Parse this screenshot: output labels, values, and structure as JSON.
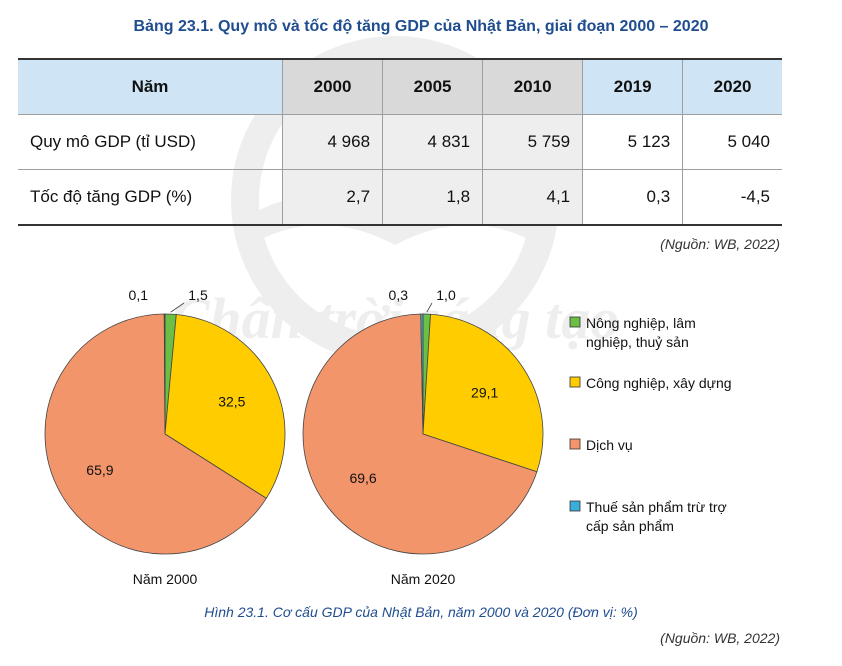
{
  "table": {
    "title": "Bảng 23.1. Quy mô và tốc độ tăng GDP của Nhật Bản, giai đoạn 2000 – 2020",
    "header_label": "Năm",
    "years": [
      "2000",
      "2005",
      "2010",
      "2019",
      "2020"
    ],
    "rows": [
      {
        "label": "Quy mô GDP (tỉ USD)",
        "values": [
          "4 968",
          "4 831",
          "5 759",
          "5 123",
          "5 040"
        ]
      },
      {
        "label": "Tốc độ tăng GDP (%)",
        "values": [
          "2,7",
          "1,8",
          "4,1",
          "0,3",
          "-4,5"
        ]
      }
    ],
    "source": "(Nguồn: WB, 2022)"
  },
  "watermark": "Chân trời sáng tạo",
  "figure": {
    "caption": "Hình 23.1. Cơ cấu GDP của Nhật Bản, năm 2000 và 2020 (Đơn vị: %)",
    "source": "(Nguồn: WB, 2022)"
  },
  "colors": {
    "agriculture": "#6cbf45",
    "industry": "#ffcc00",
    "services": "#f2956b",
    "tax": "#3aaed8",
    "header_blue": "#cfe5f5",
    "title_blue": "#1f4d8f"
  },
  "chart_data": [
    {
      "type": "pie",
      "title": "Năm 2000",
      "categories": [
        "Nông nghiệp, lâm nghiệp, thuỷ sản",
        "Công nghiệp, xây dựng",
        "Dịch vụ",
        "Thuế sản phẩm trừ trợ cấp sản phẩm"
      ],
      "values": [
        1.5,
        32.5,
        65.9,
        0.1
      ],
      "labels": [
        "1,5",
        "32,5",
        "65,9",
        "0,1"
      ]
    },
    {
      "type": "pie",
      "title": "Năm 2020",
      "categories": [
        "Nông nghiệp, lâm nghiệp, thuỷ sản",
        "Công nghiệp, xây dựng",
        "Dịch vụ",
        "Thuế sản phẩm trừ trợ cấp sản phẩm"
      ],
      "values": [
        1.0,
        29.1,
        69.6,
        0.3
      ],
      "labels": [
        "1,0",
        "29,1",
        "69,6",
        "0,3"
      ]
    }
  ],
  "legend": [
    {
      "label_line1": "Nông nghiệp, lâm",
      "label_line2": "nghiệp, thuỷ sản",
      "color_key": "agriculture"
    },
    {
      "label_line1": "Công nghiệp, xây dựng",
      "label_line2": "",
      "color_key": "industry"
    },
    {
      "label_line1": "Dịch vụ",
      "label_line2": "",
      "color_key": "services"
    },
    {
      "label_line1": "Thuế sản phẩm trừ trợ",
      "label_line2": "cấp sản phẩm",
      "color_key": "tax"
    }
  ]
}
